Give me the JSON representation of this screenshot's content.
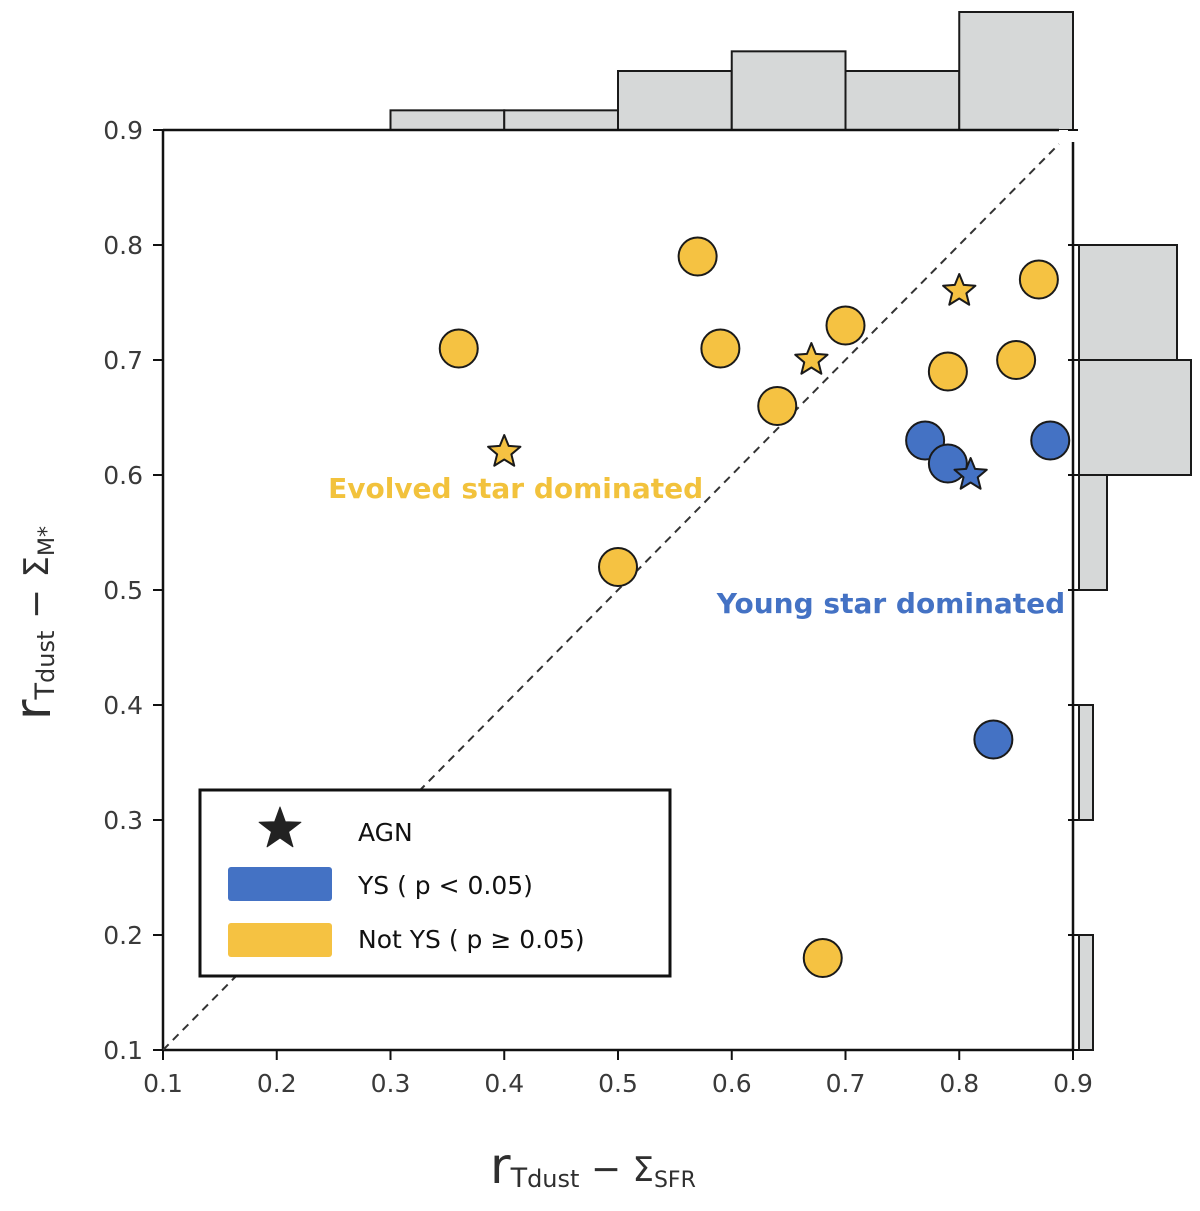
{
  "chart_data": {
    "type": "scatter",
    "title": "",
    "xlabel": {
      "main": "r",
      "sub_left": "T",
      "sub_left_sub": "dust",
      "dash": " − ",
      "sub_right": "Σ",
      "sub_right_sub": "SFR"
    },
    "ylabel": {
      "main": "r",
      "sub_left": "T",
      "sub_left_sub": "dust",
      "dash": " − ",
      "sub_right": "Σ",
      "sub_right_sub": "M*"
    },
    "xlim": [
      0.1,
      0.9
    ],
    "ylim": [
      0.1,
      0.9
    ],
    "xticks": [
      "0.1",
      "0.2",
      "0.3",
      "0.4",
      "0.5",
      "0.6",
      "0.7",
      "0.8",
      "0.9"
    ],
    "yticks": [
      "0.1",
      "0.2",
      "0.3",
      "0.4",
      "0.5",
      "0.6",
      "0.7",
      "0.8",
      "0.9"
    ],
    "diagonal": {
      "from": [
        0.1,
        0.1
      ],
      "to": [
        0.9,
        0.9
      ],
      "style": "dashed"
    },
    "points": [
      {
        "x": 0.36,
        "y": 0.71,
        "group": "not_ys",
        "marker": "circle"
      },
      {
        "x": 0.4,
        "y": 0.62,
        "group": "not_ys",
        "marker": "star"
      },
      {
        "x": 0.5,
        "y": 0.52,
        "group": "not_ys",
        "marker": "circle"
      },
      {
        "x": 0.57,
        "y": 0.79,
        "group": "not_ys",
        "marker": "circle"
      },
      {
        "x": 0.59,
        "y": 0.71,
        "group": "not_ys",
        "marker": "circle"
      },
      {
        "x": 0.64,
        "y": 0.66,
        "group": "not_ys",
        "marker": "circle"
      },
      {
        "x": 0.67,
        "y": 0.7,
        "group": "not_ys",
        "marker": "star"
      },
      {
        "x": 0.7,
        "y": 0.73,
        "group": "not_ys",
        "marker": "circle"
      },
      {
        "x": 0.68,
        "y": 0.18,
        "group": "not_ys",
        "marker": "circle"
      },
      {
        "x": 0.79,
        "y": 0.69,
        "group": "not_ys",
        "marker": "circle"
      },
      {
        "x": 0.8,
        "y": 0.76,
        "group": "not_ys",
        "marker": "star"
      },
      {
        "x": 0.85,
        "y": 0.7,
        "group": "not_ys",
        "marker": "circle"
      },
      {
        "x": 0.87,
        "y": 0.77,
        "group": "not_ys",
        "marker": "circle"
      },
      {
        "x": 0.77,
        "y": 0.63,
        "group": "ys",
        "marker": "circle"
      },
      {
        "x": 0.79,
        "y": 0.61,
        "group": "ys",
        "marker": "circle"
      },
      {
        "x": 0.81,
        "y": 0.6,
        "group": "ys",
        "marker": "star"
      },
      {
        "x": 0.88,
        "y": 0.63,
        "group": "ys",
        "marker": "circle"
      },
      {
        "x": 0.83,
        "y": 0.37,
        "group": "ys",
        "marker": "circle"
      }
    ],
    "top_histogram": {
      "orientation": "vertical",
      "bins": [
        {
          "from": 0.3,
          "to": 0.4,
          "count": 1
        },
        {
          "from": 0.4,
          "to": 0.5,
          "count": 1
        },
        {
          "from": 0.5,
          "to": 0.6,
          "count": 3
        },
        {
          "from": 0.6,
          "to": 0.7,
          "count": 4
        },
        {
          "from": 0.7,
          "to": 0.8,
          "count": 3
        },
        {
          "from": 0.8,
          "to": 0.9,
          "count": 6
        }
      ]
    },
    "right_histogram": {
      "orientation": "horizontal",
      "bins": [
        {
          "from": 0.1,
          "to": 0.2,
          "count": 0.5
        },
        {
          "from": 0.3,
          "to": 0.4,
          "count": 0.5
        },
        {
          "from": 0.5,
          "to": 0.6,
          "count": 1
        },
        {
          "from": 0.6,
          "to": 0.7,
          "count": 4
        },
        {
          "from": 0.7,
          "to": 0.8,
          "count": 3.5
        }
      ],
      "max_count": 4
    },
    "top_hist_max_count": 6,
    "annotations": [
      {
        "id": "evolved",
        "text": "Evolved star dominated",
        "x": 0.41,
        "y": 0.58,
        "color_key": "not_ys"
      },
      {
        "id": "young",
        "text": "Young star dominated",
        "x": 0.74,
        "y": 0.48,
        "color_key": "ys"
      }
    ],
    "legend": {
      "placement": "lower-left",
      "entries": [
        {
          "label": "AGN",
          "symbol": "star",
          "color_key": "agn"
        },
        {
          "label": "YS ( p < 0.05)",
          "symbol": "patch",
          "color_key": "ys"
        },
        {
          "label": "Not YS ( p ≥ 0.05)",
          "symbol": "patch",
          "color_key": "not_ys"
        }
      ]
    },
    "colors": {
      "ys": "#4472c4",
      "not_ys": "#f5c242",
      "agn": "#222222",
      "hist_fill": "#d6d8d8",
      "edge": "#1a1a1a",
      "region_evolved": "#f2c23c",
      "region_young": "#4472c4"
    }
  }
}
